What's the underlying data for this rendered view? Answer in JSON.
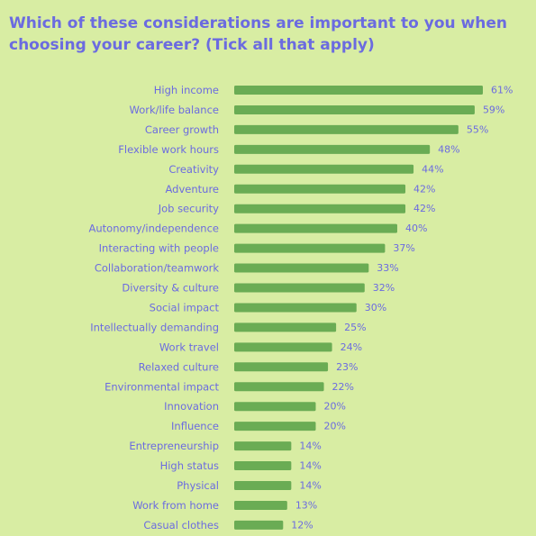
{
  "chart_data": {
    "type": "bar",
    "orientation": "horizontal",
    "title": "Which of these considerations are important to you when choosing your career? (Tick all that apply)",
    "xlabel": "",
    "ylabel": "",
    "unit": "%",
    "xlim": [
      0,
      61
    ],
    "grid": false,
    "categories": [
      "High income",
      "Work/life balance",
      "Career growth",
      "Flexible work hours",
      "Creativity",
      "Adventure",
      "Job security",
      "Autonomy/independence",
      "Interacting with people",
      "Collaboration/teamwork",
      "Diversity & culture",
      "Social impact",
      "Intellectually demanding",
      "Work travel",
      "Relaxed culture",
      "Environmental impact",
      "Innovation",
      "Influence",
      "Entrepreneurship",
      "High status",
      "Physical",
      "Work from home",
      "Casual clothes"
    ],
    "values": [
      61,
      59,
      55,
      48,
      44,
      42,
      42,
      40,
      37,
      33,
      32,
      30,
      25,
      24,
      23,
      22,
      20,
      20,
      14,
      14,
      14,
      13,
      12
    ],
    "value_labels": [
      "61%",
      "59%",
      "55%",
      "48%",
      "44%",
      "42%",
      "42%",
      "40%",
      "37%",
      "33%",
      "32%",
      "30%",
      "25%",
      "24%",
      "23%",
      "22%",
      "20%",
      "20%",
      "14%",
      "14%",
      "14%",
      "13%",
      "12%"
    ],
    "colors": {
      "background": "#d8eda3",
      "bar": "#6aac54",
      "category_text": "#6b6be0",
      "value_text": "#6b6be0",
      "title": "#6b6be0"
    }
  }
}
